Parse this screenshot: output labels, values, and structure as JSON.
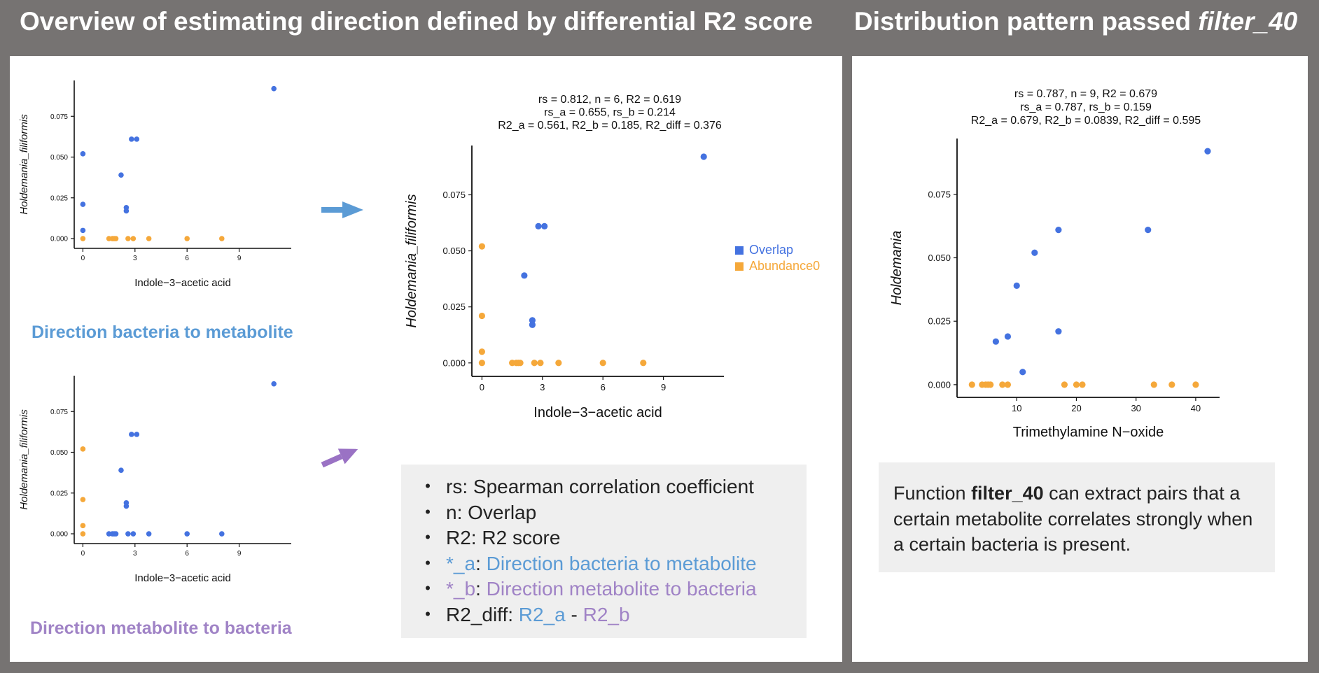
{
  "titles": {
    "left": "Overview of estimating direction defined by differential R2 score",
    "right_prefix": "Distribution pattern passed ",
    "right_italic": "filter_40"
  },
  "captions": {
    "a": "Direction bacteria to metabolite",
    "b": "Direction metabolite to bacteria"
  },
  "colors": {
    "background": "#767372",
    "overlap": "#4472e0",
    "abundance0": "#f5a83a",
    "direction_a": "#5b9bd5",
    "direction_b": "#a083c6",
    "arrow_a": "#5b9bd5",
    "arrow_b": "#9a72c4"
  },
  "legend": {
    "overlap": "Overlap",
    "abundance0": "Abundance0"
  },
  "notes": [
    {
      "bullet": "・",
      "parts": [
        {
          "text": "rs: Spearman correlation coefficient",
          "color": "default"
        }
      ]
    },
    {
      "bullet": "・",
      "parts": [
        {
          "text": "n: Overlap",
          "color": "default"
        }
      ]
    },
    {
      "bullet": "・",
      "parts": [
        {
          "text": "R2: R2 score",
          "color": "default"
        }
      ]
    },
    {
      "bullet": "・",
      "parts": [
        {
          "text": "*_a",
          "color": "a"
        },
        {
          "text": ": ",
          "color": "default"
        },
        {
          "text": "Direction bacteria to metabolite",
          "color": "a"
        }
      ]
    },
    {
      "bullet": "・",
      "parts": [
        {
          "text": "*_b",
          "color": "b"
        },
        {
          "text": ": ",
          "color": "default"
        },
        {
          "text": "Direction metabolite to bacteria",
          "color": "b"
        }
      ]
    },
    {
      "bullet": "・",
      "parts": [
        {
          "text": "R2_diff: ",
          "color": "default"
        },
        {
          "text": "R2_a",
          "color": "a"
        },
        {
          "text": " - ",
          "color": "default"
        },
        {
          "text": "R2_b",
          "color": "b"
        }
      ]
    }
  ],
  "description": {
    "prefix": "Function ",
    "bold": "filter_40",
    "suffix": " can extract pairs that a certain metabolite correlates strongly when a certain bacteria is present."
  },
  "chart_data": [
    {
      "id": "small_a",
      "type": "scatter",
      "title": "",
      "xlabel": "Indole−3−acetic acid",
      "ylabel": "Holdemania_filiformis",
      "xlim": [
        -0.5,
        12
      ],
      "ylim": [
        -0.006,
        0.097
      ],
      "xticks": [
        0,
        3,
        6,
        9
      ],
      "yticks": [
        0.0,
        0.025,
        0.05,
        0.075
      ],
      "ytick_labels": [
        "0.000",
        "0.025",
        "0.050",
        "0.075"
      ],
      "series": [
        {
          "color_key": "overlap",
          "points": [
            [
              0,
              0.052
            ],
            [
              0,
              0.021
            ],
            [
              0,
              0.005
            ],
            [
              2.2,
              0.039
            ],
            [
              2.5,
              0.019
            ],
            [
              2.5,
              0.017
            ],
            [
              2.8,
              0.061
            ],
            [
              3.1,
              0.061
            ],
            [
              11,
              0.092
            ]
          ]
        },
        {
          "color_key": "abundance0",
          "points": [
            [
              0,
              0.0
            ],
            [
              1.5,
              0.0
            ],
            [
              1.7,
              0.0
            ],
            [
              1.8,
              0.0
            ],
            [
              1.9,
              0.0
            ],
            [
              2.6,
              0.0
            ],
            [
              2.9,
              0.0
            ],
            [
              3.8,
              0.0
            ],
            [
              6.0,
              0.0
            ],
            [
              8.0,
              0.0
            ]
          ]
        }
      ]
    },
    {
      "id": "small_b",
      "type": "scatter",
      "title": "",
      "xlabel": "Indole−3−acetic acid",
      "ylabel": "Holdemania_filiformis",
      "xlim": [
        -0.5,
        12
      ],
      "ylim": [
        -0.006,
        0.097
      ],
      "xticks": [
        0,
        3,
        6,
        9
      ],
      "yticks": [
        0.0,
        0.025,
        0.05,
        0.075
      ],
      "ytick_labels": [
        "0.000",
        "0.025",
        "0.050",
        "0.075"
      ],
      "series": [
        {
          "color_key": "overlap",
          "points": [
            [
              1.5,
              0.0
            ],
            [
              1.7,
              0.0
            ],
            [
              1.8,
              0.0
            ],
            [
              1.9,
              0.0
            ],
            [
              2.2,
              0.039
            ],
            [
              2.5,
              0.019
            ],
            [
              2.5,
              0.017
            ],
            [
              2.6,
              0.0
            ],
            [
              2.8,
              0.061
            ],
            [
              2.9,
              0.0
            ],
            [
              3.1,
              0.061
            ],
            [
              3.8,
              0.0
            ],
            [
              6.0,
              0.0
            ],
            [
              8.0,
              0.0
            ],
            [
              11,
              0.092
            ]
          ]
        },
        {
          "color_key": "abundance0",
          "points": [
            [
              0,
              0.052
            ],
            [
              0,
              0.021
            ],
            [
              0,
              0.005
            ],
            [
              0,
              0.0
            ]
          ]
        }
      ]
    },
    {
      "id": "main",
      "type": "scatter",
      "title_lines": [
        "rs = 0.812, n = 6, R2 = 0.619",
        "rs_a = 0.655, rs_b = 0.214",
        "R2_a = 0.561, R2_b = 0.185, R2_diff = 0.376"
      ],
      "xlabel": "Indole−3−acetic acid",
      "ylabel": "Holdemania_filiformis",
      "xlim": [
        -0.5,
        12
      ],
      "ylim": [
        -0.006,
        0.097
      ],
      "xticks": [
        0,
        3,
        6,
        9
      ],
      "yticks": [
        0.0,
        0.025,
        0.05,
        0.075
      ],
      "ytick_labels": [
        "0.000",
        "0.025",
        "0.050",
        "0.075"
      ],
      "legend_position": "right",
      "series": [
        {
          "name": "Overlap",
          "color_key": "overlap",
          "points": [
            [
              2.1,
              0.039
            ],
            [
              2.5,
              0.019
            ],
            [
              2.5,
              0.017
            ],
            [
              2.8,
              0.061
            ],
            [
              3.1,
              0.061
            ],
            [
              11,
              0.092
            ]
          ]
        },
        {
          "name": "Abundance0",
          "color_key": "abundance0",
          "points": [
            [
              0,
              0.052
            ],
            [
              0,
              0.021
            ],
            [
              0,
              0.005
            ],
            [
              0,
              0.0
            ],
            [
              1.5,
              0.0
            ],
            [
              1.7,
              0.0
            ],
            [
              1.8,
              0.0
            ],
            [
              1.9,
              0.0
            ],
            [
              2.6,
              0.0
            ],
            [
              2.9,
              0.0
            ],
            [
              3.8,
              0.0
            ],
            [
              6.0,
              0.0
            ],
            [
              8.0,
              0.0
            ]
          ]
        }
      ]
    },
    {
      "id": "right",
      "type": "scatter",
      "title_lines": [
        "rs = 0.787, n = 9, R2 = 0.679",
        "rs_a = 0.787, rs_b = 0.159",
        "R2_a = 0.679, R2_b = 0.0839, R2_diff = 0.595"
      ],
      "xlabel": "Trimethylamine N−oxide",
      "ylabel": "Holdemania",
      "xlim": [
        0,
        44
      ],
      "ylim": [
        -0.005,
        0.097
      ],
      "xticks": [
        10,
        20,
        30,
        40
      ],
      "yticks": [
        0.0,
        0.025,
        0.05,
        0.075
      ],
      "ytick_labels": [
        "0.000",
        "0.025",
        "0.050",
        "0.075"
      ],
      "series": [
        {
          "color_key": "overlap",
          "points": [
            [
              6.5,
              0.017
            ],
            [
              8.5,
              0.019
            ],
            [
              10,
              0.039
            ],
            [
              11,
              0.005
            ],
            [
              13,
              0.052
            ],
            [
              17,
              0.061
            ],
            [
              17,
              0.021
            ],
            [
              32,
              0.061
            ],
            [
              42,
              0.092
            ]
          ]
        },
        {
          "color_key": "abundance0",
          "points": [
            [
              2.5,
              0.0
            ],
            [
              4.2,
              0.0
            ],
            [
              4.8,
              0.0
            ],
            [
              5.2,
              0.0
            ],
            [
              5.6,
              0.0
            ],
            [
              7.6,
              0.0
            ],
            [
              8.5,
              0.0
            ],
            [
              18,
              0.0
            ],
            [
              20,
              0.0
            ],
            [
              21,
              0.0
            ],
            [
              33,
              0.0
            ],
            [
              36,
              0.0
            ],
            [
              40,
              0.0
            ]
          ]
        }
      ]
    }
  ]
}
